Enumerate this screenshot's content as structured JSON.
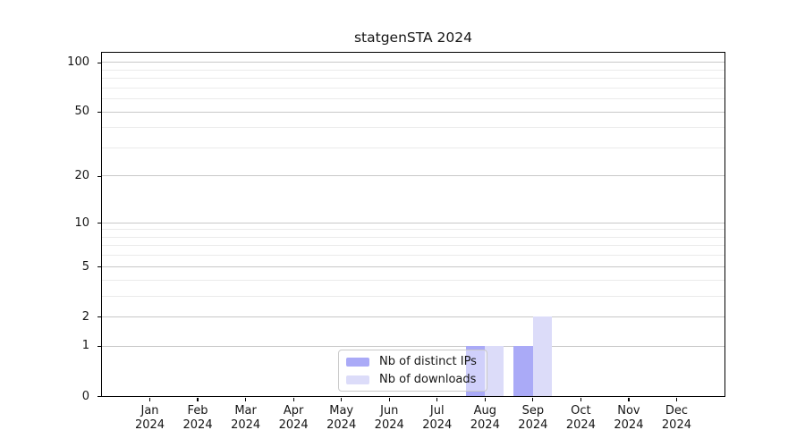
{
  "chart_data": {
    "type": "bar",
    "title": "statgenSTA 2024",
    "categories": [
      "Jan 2024",
      "Feb 2024",
      "Mar 2024",
      "Apr 2024",
      "May 2024",
      "Jun 2024",
      "Jul 2024",
      "Aug 2024",
      "Sep 2024",
      "Oct 2024",
      "Nov 2024",
      "Dec 2024"
    ],
    "series": [
      {
        "name": "Nb of distinct IPs",
        "color": "#aaaaf7",
        "values": [
          0,
          0,
          0,
          0,
          0,
          0,
          0,
          1,
          1,
          0,
          0,
          0
        ]
      },
      {
        "name": "Nb of downloads",
        "color": "#dcdcf9",
        "values": [
          0,
          0,
          0,
          0,
          0,
          0,
          0,
          1,
          2,
          0,
          0,
          0
        ]
      }
    ],
    "xlabel": "",
    "ylabel": "",
    "yscale": "log1p",
    "y_ticks": [
      0,
      1,
      2,
      5,
      10,
      20,
      50,
      100
    ],
    "y_minor_gridlines": [
      3,
      4,
      6,
      7,
      8,
      9,
      30,
      40,
      60,
      70,
      80,
      90
    ],
    "ylim": [
      0,
      115
    ],
    "grid": "horizontal",
    "legend_position": "lower center"
  }
}
